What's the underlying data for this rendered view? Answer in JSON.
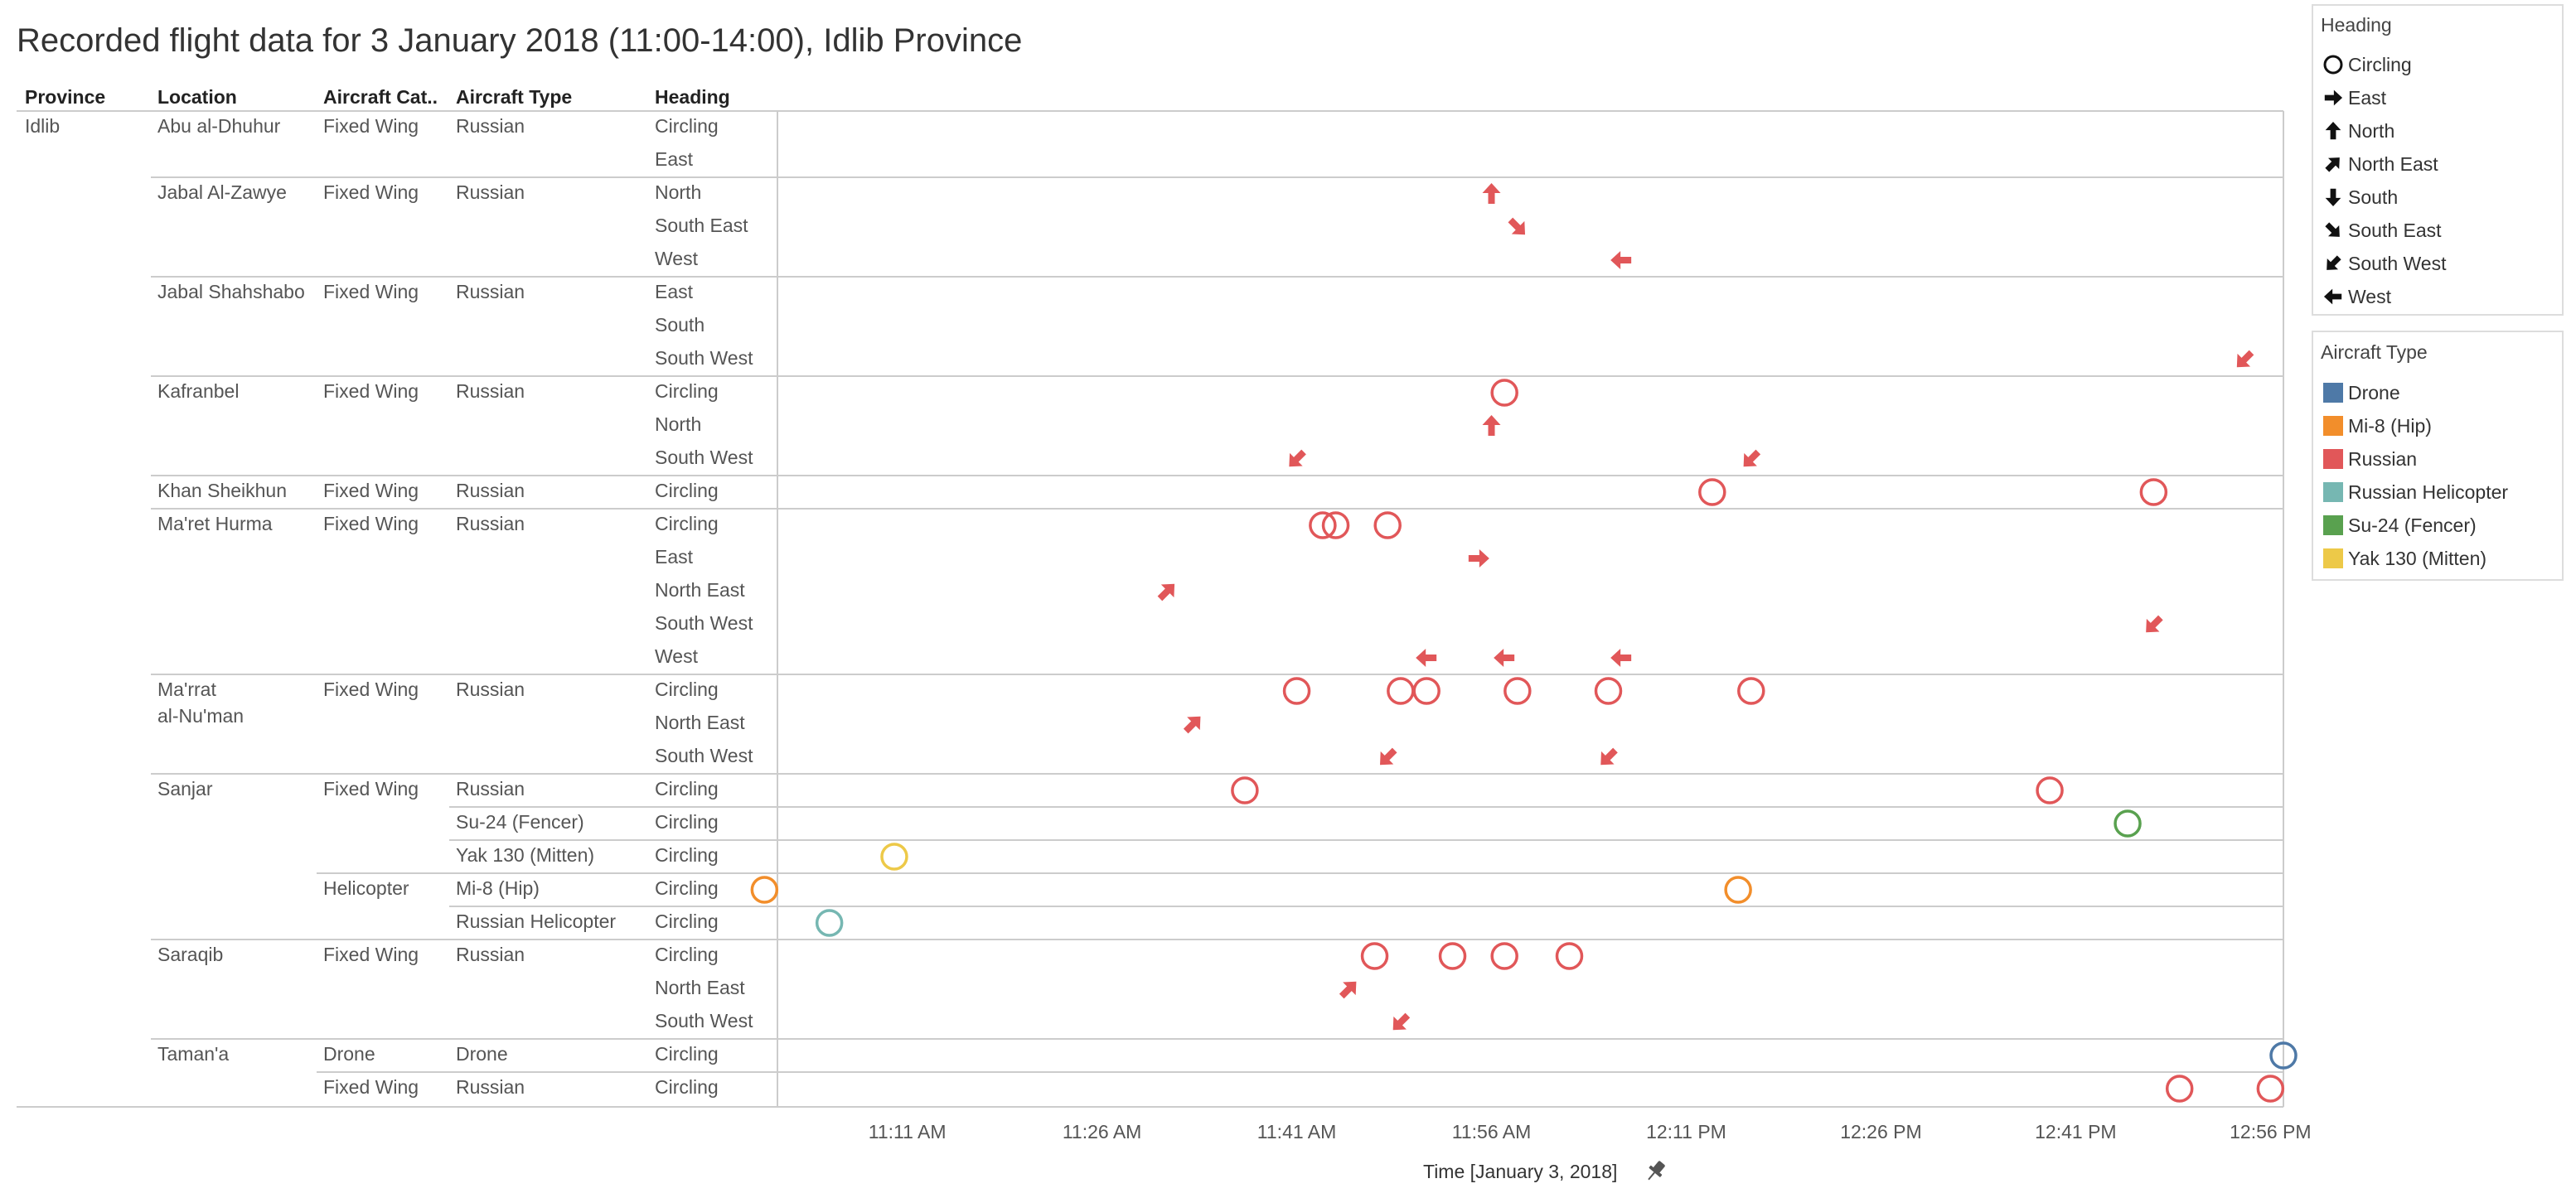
{
  "chart_data": {
    "type": "scatter",
    "title": "Recorded flight data for 3 January 2018 (11:00-14:00), Idlib Province",
    "table_columns": [
      "Province",
      "Location",
      "Aircraft Cat..",
      "Aircraft Type",
      "Heading"
    ],
    "province": "Idlib",
    "xlabel": "Time [January 3, 2018]",
    "x_ticks": [
      "11:11 AM",
      "11:26 AM",
      "11:41 AM",
      "11:56 AM",
      "12:11 PM",
      "12:26 PM",
      "12:41 PM",
      "12:56 PM"
    ],
    "x_range": [
      "11:01 AM",
      "12:57 PM"
    ],
    "grid": false,
    "legend_position": "right",
    "rows": [
      {
        "location": "Abu al-Dhuhur",
        "category": "Fixed Wing",
        "type": "Russian",
        "heading": "Circling",
        "points": []
      },
      {
        "location": "",
        "category": "",
        "type": "",
        "heading": "East",
        "points": []
      },
      {
        "location": "Jabal Al-Zawye",
        "category": "Fixed Wing",
        "type": "Russian",
        "heading": "North",
        "points": [
          "11:56 AM"
        ]
      },
      {
        "location": "",
        "category": "",
        "type": "",
        "heading": "South East",
        "points": [
          "11:58 AM"
        ]
      },
      {
        "location": "",
        "category": "",
        "type": "",
        "heading": "West",
        "points": [
          "12:06 PM"
        ]
      },
      {
        "location": "Jabal Shahshabo",
        "category": "Fixed Wing",
        "type": "Russian",
        "heading": "East",
        "points": []
      },
      {
        "location": "",
        "category": "",
        "type": "",
        "heading": "South",
        "points": []
      },
      {
        "location": "",
        "category": "",
        "type": "",
        "heading": "South West",
        "points": [
          "12:54 PM"
        ]
      },
      {
        "location": "Kafranbel",
        "category": "Fixed Wing",
        "type": "Russian",
        "heading": "Circling",
        "points": [
          "11:57 AM"
        ]
      },
      {
        "location": "",
        "category": "",
        "type": "",
        "heading": "North",
        "points": [
          "11:56 AM"
        ]
      },
      {
        "location": "",
        "category": "",
        "type": "",
        "heading": "South West",
        "points": [
          "11:41 AM",
          "12:16 PM"
        ]
      },
      {
        "location": "Khan Sheikhun",
        "category": "Fixed Wing",
        "type": "Russian",
        "heading": "Circling",
        "points": [
          "12:13 PM",
          "12:47 PM"
        ]
      },
      {
        "location": "Ma'ret Hurma",
        "category": "Fixed Wing",
        "type": "Russian",
        "heading": "Circling",
        "points": [
          "11:43 AM",
          "11:44 AM",
          "11:48 AM"
        ]
      },
      {
        "location": "",
        "category": "",
        "type": "",
        "heading": "East",
        "points": [
          "11:55 AM"
        ]
      },
      {
        "location": "",
        "category": "",
        "type": "",
        "heading": "North East",
        "points": [
          "11:31 AM"
        ]
      },
      {
        "location": "",
        "category": "",
        "type": "",
        "heading": "South West",
        "points": [
          "12:47 PM"
        ]
      },
      {
        "location": "",
        "category": "",
        "type": "",
        "heading": "West",
        "points": [
          "11:51 AM",
          "11:57 AM",
          "12:06 PM"
        ]
      },
      {
        "location": "Ma'rrat al-Nu'man",
        "category": "Fixed Wing",
        "type": "Russian",
        "heading": "Circling",
        "points": [
          "11:41 AM",
          "11:49 AM",
          "11:51 AM",
          "11:58 AM",
          "12:05 PM",
          "12:16 PM"
        ]
      },
      {
        "location": "",
        "category": "",
        "type": "",
        "heading": "North East",
        "points": [
          "11:33 AM"
        ]
      },
      {
        "location": "",
        "category": "",
        "type": "",
        "heading": "South West",
        "points": [
          "11:48 AM",
          "12:05 PM"
        ]
      },
      {
        "location": "Sanjar",
        "category": "Fixed Wing",
        "type": "Russian",
        "heading": "Circling",
        "points": [
          "11:37 AM",
          "12:39 PM"
        ]
      },
      {
        "location": "",
        "category": "",
        "type": "Su-24 (Fencer)",
        "heading": "Circling",
        "points": [
          "12:45 PM"
        ]
      },
      {
        "location": "",
        "category": "",
        "type": "Yak 130 (Mitten)",
        "heading": "Circling",
        "points": [
          "11:10 AM"
        ]
      },
      {
        "location": "",
        "category": "Helicopter",
        "type": "Mi-8 (Hip)",
        "heading": "Circling",
        "points": [
          "11:00 AM",
          "12:15 PM"
        ]
      },
      {
        "location": "",
        "category": "",
        "type": "Russian Helicopter",
        "heading": "Circling",
        "points": [
          "11:05 AM"
        ]
      },
      {
        "location": "Saraqib",
        "category": "Fixed Wing",
        "type": "Russian",
        "heading": "Circling",
        "points": [
          "11:47 AM",
          "11:53 AM",
          "11:57 AM",
          "12:02 PM"
        ]
      },
      {
        "location": "",
        "category": "",
        "type": "",
        "heading": "North East",
        "points": [
          "11:45 AM"
        ]
      },
      {
        "location": "",
        "category": "",
        "type": "",
        "heading": "South West",
        "points": [
          "11:49 AM"
        ]
      },
      {
        "location": "Taman'a",
        "category": "Drone",
        "type": "Drone",
        "heading": "Circling",
        "points": [
          "12:57 PM"
        ]
      },
      {
        "location": "",
        "category": "Fixed Wing",
        "type": "Russian",
        "heading": "Circling",
        "points": [
          "12:49 PM",
          "12:56 PM"
        ]
      }
    ],
    "legend_heading": {
      "title": "Heading",
      "items": [
        {
          "label": "Circling",
          "icon": "circle-icon"
        },
        {
          "label": "East",
          "icon": "arrow-east-icon"
        },
        {
          "label": "North",
          "icon": "arrow-north-icon"
        },
        {
          "label": "North East",
          "icon": "arrow-north-east-icon"
        },
        {
          "label": "South",
          "icon": "arrow-south-icon"
        },
        {
          "label": "South East",
          "icon": "arrow-south-east-icon"
        },
        {
          "label": "South West",
          "icon": "arrow-south-west-icon"
        },
        {
          "label": "West",
          "icon": "arrow-west-icon"
        }
      ]
    },
    "legend_aircraft": {
      "title": "Aircraft Type",
      "items": [
        {
          "label": "Drone",
          "color": "#4e79a7"
        },
        {
          "label": "Mi-8 (Hip)",
          "color": "#f28e2b"
        },
        {
          "label": "Russian",
          "color": "#e15759"
        },
        {
          "label": "Russian Helicopter",
          "color": "#76b7b2"
        },
        {
          "label": "Su-24 (Fencer)",
          "color": "#59a14f"
        },
        {
          "label": "Yak 130 (Mitten)",
          "color": "#edc948"
        }
      ]
    }
  }
}
